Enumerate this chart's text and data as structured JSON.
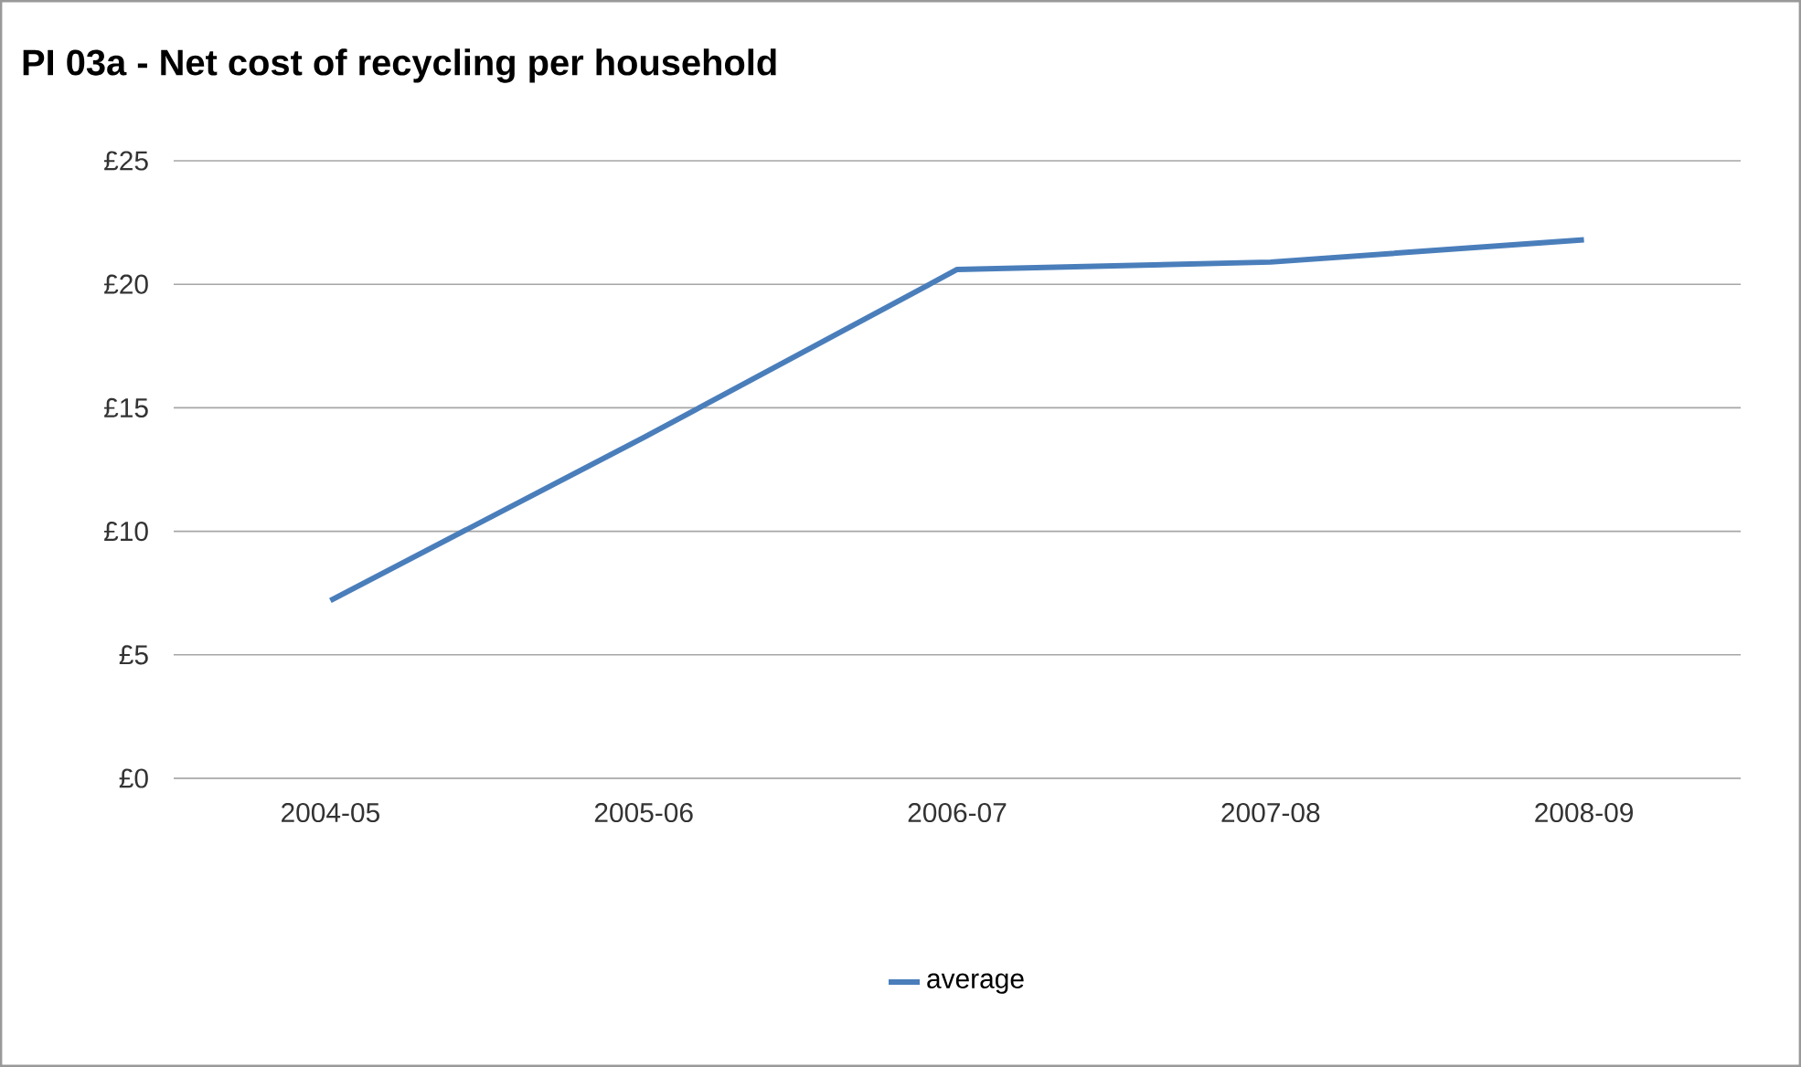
{
  "chart_data": {
    "type": "line",
    "title": "PI 03a - Net cost of recycling per household",
    "categories": [
      "2004-05",
      "2005-06",
      "2006-07",
      "2007-08",
      "2008-09"
    ],
    "series": [
      {
        "name": "average",
        "color": "#4a7ebb",
        "values": [
          7.2,
          13.8,
          20.6,
          20.9,
          21.8
        ]
      }
    ],
    "ylim": [
      0,
      25
    ],
    "yticks": [
      {
        "value": 0,
        "label": "£0"
      },
      {
        "value": 5,
        "label": "£5"
      },
      {
        "value": 10,
        "label": "£10"
      },
      {
        "value": 15,
        "label": "£15"
      },
      {
        "value": 20,
        "label": "£20"
      },
      {
        "value": 25,
        "label": "£25"
      }
    ],
    "grid": "y",
    "legend": "bottom",
    "marker": "none",
    "line_style": "solid"
  }
}
